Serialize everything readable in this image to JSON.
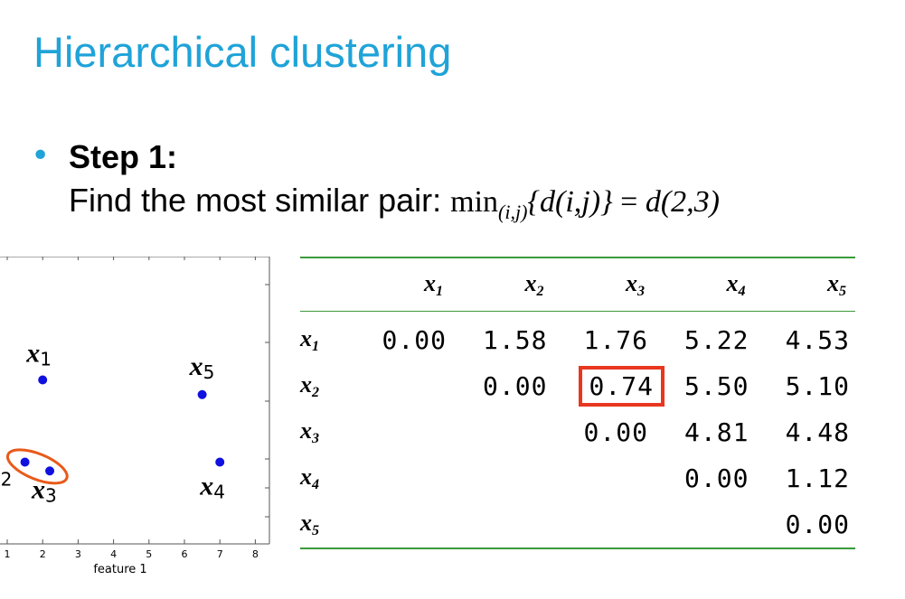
{
  "title": "Hierarchical clustering",
  "step": {
    "bullet": "•",
    "heading": "Step 1:",
    "text": "Find the most similar pair: ",
    "formula": {
      "min": "min",
      "sub": "(i,j)",
      "expr": "{d(i,j)}",
      "equals": " = ",
      "result": "d(2,3)"
    }
  },
  "scatter": {
    "xlabel": "feature 1",
    "xticks": [
      "1",
      "2",
      "3",
      "4",
      "5",
      "6",
      "7",
      "8"
    ],
    "points": [
      {
        "name": "x",
        "sub": "1",
        "x": 2.0,
        "y": 7.8
      },
      {
        "name": "x",
        "sub": "2",
        "x": 1.5,
        "y": 5.0
      },
      {
        "name": "x",
        "sub": "3",
        "x": 2.2,
        "y": 4.7
      },
      {
        "name": "x",
        "sub": "4",
        "x": 7.0,
        "y": 5.0
      },
      {
        "name": "x",
        "sub": "5",
        "x": 6.5,
        "y": 7.3
      }
    ],
    "point_color": "#1010e0",
    "highlight_color": "#e85a1a"
  },
  "table": {
    "columns": [
      {
        "name": "x",
        "sub": "1"
      },
      {
        "name": "x",
        "sub": "2"
      },
      {
        "name": "x",
        "sub": "3"
      },
      {
        "name": "x",
        "sub": "4"
      },
      {
        "name": "x",
        "sub": "5"
      }
    ],
    "rows": [
      {
        "name": "x",
        "sub": "1",
        "cells": [
          "0.00",
          "1.58",
          "1.76",
          "5.22",
          "4.53"
        ]
      },
      {
        "name": "x",
        "sub": "2",
        "cells": [
          "",
          "0.00",
          "0.74",
          "5.50",
          "5.10"
        ]
      },
      {
        "name": "x",
        "sub": "3",
        "cells": [
          "",
          "",
          "0.00",
          "4.81",
          "4.48"
        ]
      },
      {
        "name": "x",
        "sub": "4",
        "cells": [
          "",
          "",
          "",
          "0.00",
          "1.12"
        ]
      },
      {
        "name": "x",
        "sub": "5",
        "cells": [
          "",
          "",
          "",
          "",
          "0.00"
        ]
      }
    ],
    "highlight": {
      "row": 1,
      "col": 2
    },
    "rule_color": "#3a9b3a",
    "highlight_color": "#e8371f"
  }
}
